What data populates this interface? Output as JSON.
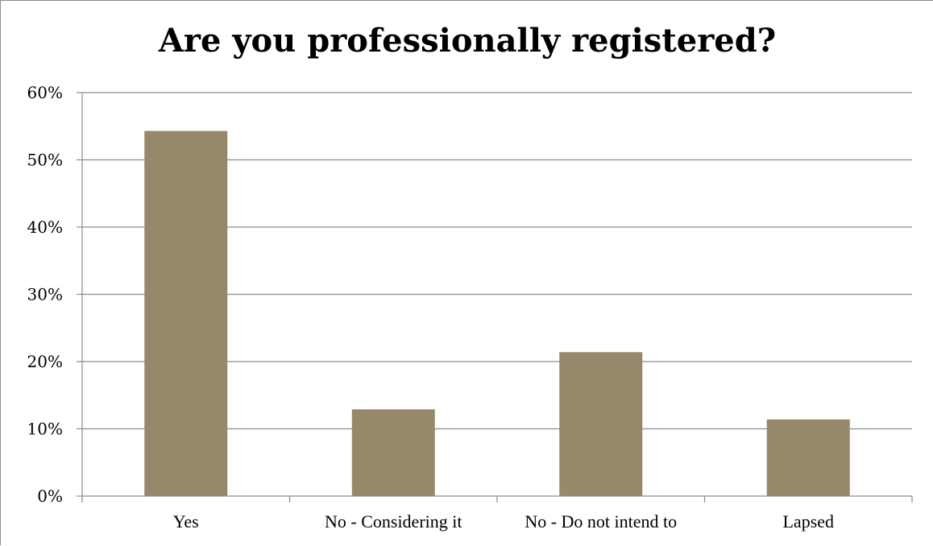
{
  "chart_data": {
    "type": "bar",
    "title": "Are you professionally registered?",
    "xlabel": "",
    "ylabel": "",
    "categories": [
      "Yes",
      "No - Considering it",
      "No - Do not intend to",
      "Lapsed"
    ],
    "values": [
      54.3,
      12.9,
      21.4,
      11.4
    ],
    "ylim": [
      0,
      60
    ],
    "yticks": [
      0,
      10,
      20,
      30,
      40,
      50,
      60
    ],
    "ytick_labels": [
      "0%",
      "10%",
      "20%",
      "30%",
      "40%",
      "50%",
      "60%"
    ],
    "grid": true,
    "legend": "none",
    "colors": {
      "bar": "#96896b",
      "grid": "#8c8c8c",
      "axis": "#8c8c8c"
    }
  }
}
